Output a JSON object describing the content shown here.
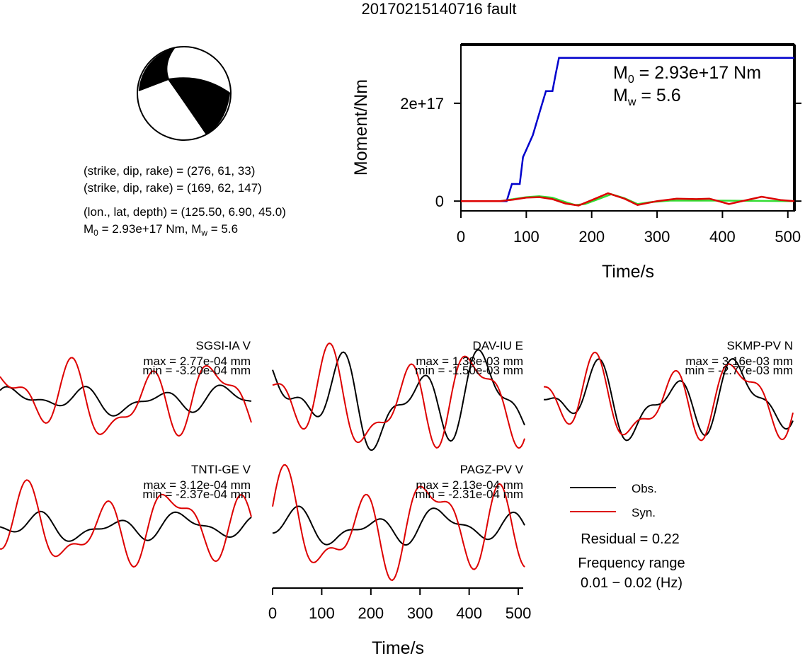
{
  "title": "20170215140716 fault",
  "mechanism": {
    "nodal_plane_1": "(strike, dip, rake) = (276, 61, 33)",
    "nodal_plane_2": "(strike, dip, rake) = (169, 62, 147)",
    "location": "(lon., lat, depth) = (125.50, 6.90, 45.0)",
    "m0_prefix": "M",
    "m0_sub": "0",
    "m0_rest": " = 2.93e+17 Nm, M",
    "mw_sub": "w",
    "mw_rest": " = 5.6"
  },
  "moment_plot": {
    "type": "line",
    "ylabel": "Moment/Nm",
    "xlabel": "Time/s",
    "x_ticks": [
      "0",
      "100",
      "200",
      "300",
      "400",
      "500"
    ],
    "y_ticks": [
      "0",
      "2e+17"
    ],
    "xlim": [
      0,
      510
    ],
    "ylim": [
      -2e+16,
      3.2e+17
    ],
    "annotation_m0": {
      "prefix": "M",
      "sub": "0",
      "rest": " = 2.93e+17 Nm"
    },
    "annotation_mw": {
      "prefix": "M",
      "sub": "w",
      "rest": " = 5.6"
    },
    "colors": {
      "cumulative": "#0000cc",
      "rate_red": "#dd0000",
      "rate_green": "#33dd33"
    }
  },
  "chart_data": {
    "type": "line",
    "series": [
      {
        "x": [
          0,
          70,
          78,
          82,
          90,
          95,
          100,
          110,
          120,
          130,
          140,
          145,
          150,
          200,
          300,
          400,
          510
        ],
        "y": [
          0,
          0,
          3.5e+16,
          3.5e+16,
          3.5e+16,
          9e+16,
          1.05e+17,
          1.35e+17,
          1.8e+17,
          2.25e+17,
          2.25e+17,
          2.6e+17,
          2.93e+17,
          2.93e+17,
          2.93e+17,
          2.93e+17,
          2.93e+17
        ]
      },
      {
        "x": [
          0,
          60,
          80,
          100,
          120,
          140,
          160,
          180,
          200,
          225,
          250,
          270,
          300,
          330,
          360,
          380,
          410,
          440,
          460,
          490,
          510
        ],
        "y": [
          0,
          0,
          3000000000000000.0,
          7000000000000000.0,
          8000000000000000.0,
          4000000000000000.0,
          -5000000000000000.0,
          -9000000000000000.0,
          2000000000000000.0,
          1.6e+16,
          5000000000000000.0,
          -8000000000000000.0,
          0,
          5000000000000000.0,
          4000000000000000.0,
          5000000000000000.0,
          -6000000000000000.0,
          3000000000000000.0,
          9000000000000000.0,
          2000000000000000.0,
          0
        ]
      },
      {
        "x": [
          0,
          60,
          80,
          100,
          120,
          140,
          160,
          175,
          190,
          210,
          230,
          250,
          270,
          290,
          320,
          400,
          510
        ],
        "y": [
          0,
          0,
          4000000000000000.0,
          8000000000000000.0,
          1e+16,
          7000000000000000.0,
          -2000000000000000.0,
          -8000000000000000.0,
          -6000000000000000.0,
          4000000000000000.0,
          1.4e+16,
          6000000000000000.0,
          -6000000000000000.0,
          -2000000000000000.0,
          1000000000000000.0,
          1000000000000000.0,
          0
        ]
      }
    ]
  },
  "waveform_axis": {
    "xlabel": "Time/s",
    "x_ticks": [
      "0",
      "100",
      "200",
      "300",
      "400",
      "500"
    ]
  },
  "stations": [
    {
      "name": "SGSI-IA V",
      "max": "max = 2.77e-04 mm",
      "min": "min = -3.20e-04 mm"
    },
    {
      "name": "DAV-IU E",
      "max": "max = 1.38e-03 mm",
      "min": "min = -1.50e-03 mm"
    },
    {
      "name": "SKMP-PV N",
      "max": "max = 3.16e-03 mm",
      "min": "min = -2.77e-03 mm"
    },
    {
      "name": "TNTI-GE V",
      "max": "max = 3.12e-04 mm",
      "min": "min = -2.37e-04 mm"
    },
    {
      "name": "PAGZ-PV V",
      "max": "max = 2.13e-04 mm",
      "min": "min = -2.31e-04 mm"
    }
  ],
  "legend": {
    "obs": "Obs.",
    "syn": "Syn.",
    "obs_color": "#000000",
    "syn_color": "#dd0000"
  },
  "residual": "Residual = 0.22",
  "frequency_label": "Frequency range",
  "frequency_value": "0.01 − 0.02 (Hz)"
}
